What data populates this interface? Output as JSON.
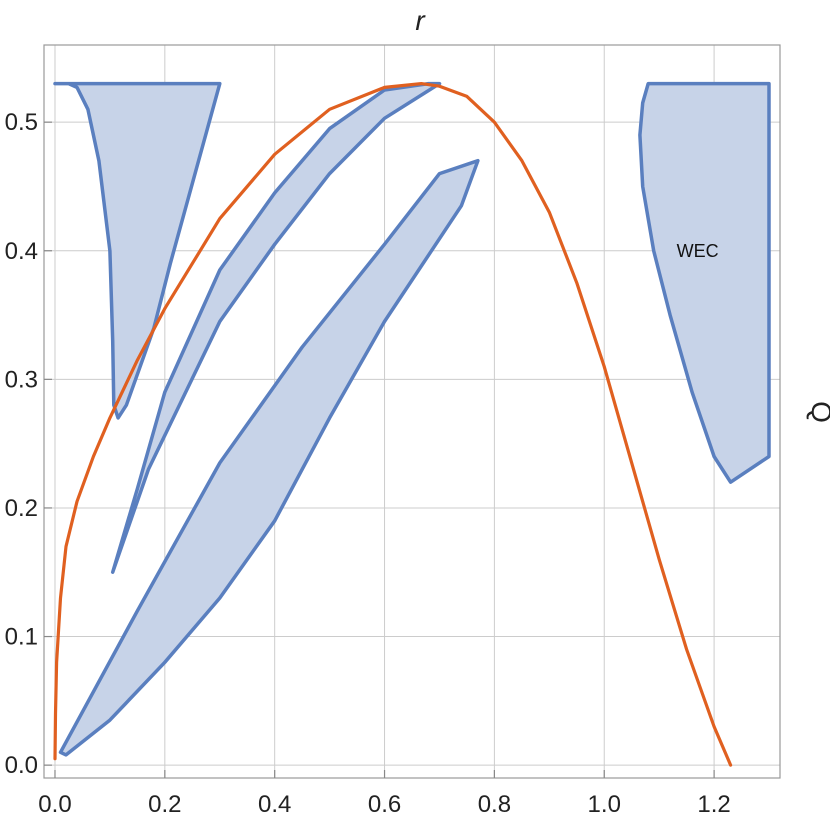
{
  "chart_data": {
    "type": "area",
    "xlabel": "r",
    "ylabel": "Q",
    "xlim": [
      -0.02,
      1.32
    ],
    "ylim": [
      -0.01,
      0.56
    ],
    "grid": true,
    "x_ticks": [
      0.0,
      0.2,
      0.4,
      0.6,
      0.8,
      1.0,
      1.2
    ],
    "y_ticks": [
      0.0,
      0.1,
      0.2,
      0.3,
      0.4,
      0.5
    ],
    "x_tick_labels": [
      "0.0",
      "0.2",
      "0.4",
      "0.6",
      "0.8",
      "1.0",
      "1.2"
    ],
    "y_tick_labels": [
      "0.0",
      "0.1",
      "0.2",
      "0.3",
      "0.4",
      "0.5"
    ],
    "colors": {
      "region_fill": "#c7d3e8",
      "region_edge": "#5a7fbf",
      "curve": "#e06020",
      "grid": "#cccccc",
      "frame": "#999999"
    },
    "annotations": [
      {
        "text": "WEC",
        "x": 1.17,
        "y": 0.4
      }
    ],
    "curves": [
      {
        "points": [
          [
            0.0,
            0.005
          ],
          [
            0.001,
            0.04
          ],
          [
            0.003,
            0.08
          ],
          [
            0.01,
            0.13
          ],
          [
            0.02,
            0.17
          ],
          [
            0.04,
            0.205
          ],
          [
            0.07,
            0.24
          ],
          [
            0.1,
            0.27
          ],
          [
            0.15,
            0.315
          ],
          [
            0.2,
            0.355
          ],
          [
            0.25,
            0.39
          ],
          [
            0.3,
            0.425
          ],
          [
            0.4,
            0.475
          ],
          [
            0.5,
            0.51
          ],
          [
            0.6,
            0.527
          ],
          [
            0.667,
            0.53
          ],
          [
            0.7,
            0.528
          ],
          [
            0.75,
            0.52
          ],
          [
            0.8,
            0.5
          ],
          [
            0.85,
            0.47
          ],
          [
            0.9,
            0.43
          ],
          [
            0.95,
            0.375
          ],
          [
            1.0,
            0.31
          ],
          [
            1.05,
            0.235
          ],
          [
            1.1,
            0.16
          ],
          [
            1.15,
            0.09
          ],
          [
            1.2,
            0.03
          ],
          [
            1.23,
            0.0
          ]
        ]
      }
    ],
    "regions": [
      {
        "points": [
          [
            0.0,
            0.53
          ],
          [
            0.3,
            0.53
          ],
          [
            0.21,
            0.39
          ],
          [
            0.18,
            0.34
          ],
          [
            0.13,
            0.28
          ],
          [
            0.115,
            0.27
          ],
          [
            0.107,
            0.28
          ],
          [
            0.105,
            0.33
          ],
          [
            0.1,
            0.4
          ],
          [
            0.08,
            0.47
          ],
          [
            0.06,
            0.51
          ],
          [
            0.04,
            0.527
          ],
          [
            0.025,
            0.53
          ]
        ]
      },
      {
        "points": [
          [
            0.105,
            0.15
          ],
          [
            0.17,
            0.23
          ],
          [
            0.3,
            0.345
          ],
          [
            0.4,
            0.405
          ],
          [
            0.5,
            0.46
          ],
          [
            0.6,
            0.503
          ],
          [
            0.7,
            0.53
          ],
          [
            0.68,
            0.53
          ],
          [
            0.6,
            0.525
          ],
          [
            0.5,
            0.495
          ],
          [
            0.4,
            0.445
          ],
          [
            0.3,
            0.385
          ],
          [
            0.2,
            0.29
          ],
          [
            0.15,
            0.215
          ],
          [
            0.105,
            0.15
          ]
        ]
      },
      {
        "points": [
          [
            0.01,
            0.01
          ],
          [
            0.15,
            0.12
          ],
          [
            0.3,
            0.235
          ],
          [
            0.45,
            0.325
          ],
          [
            0.6,
            0.405
          ],
          [
            0.7,
            0.46
          ],
          [
            0.77,
            0.47
          ],
          [
            0.74,
            0.435
          ],
          [
            0.6,
            0.345
          ],
          [
            0.5,
            0.27
          ],
          [
            0.4,
            0.19
          ],
          [
            0.3,
            0.13
          ],
          [
            0.2,
            0.08
          ],
          [
            0.1,
            0.035
          ],
          [
            0.02,
            0.008
          ]
        ]
      },
      {
        "points": [
          [
            1.08,
            0.53
          ],
          [
            1.3,
            0.53
          ],
          [
            1.3,
            0.24
          ],
          [
            1.23,
            0.22
          ],
          [
            1.2,
            0.24
          ],
          [
            1.16,
            0.29
          ],
          [
            1.12,
            0.35
          ],
          [
            1.09,
            0.4
          ],
          [
            1.07,
            0.45
          ],
          [
            1.065,
            0.49
          ],
          [
            1.07,
            0.515
          ],
          [
            1.08,
            0.53
          ]
        ]
      }
    ]
  }
}
